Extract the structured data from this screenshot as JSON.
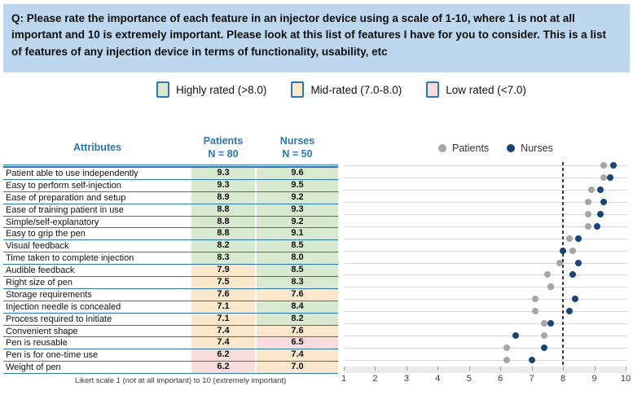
{
  "question": "Q: Please rate the importance of each feature in an injector device using a scale of 1-10, where 1 is not at all important and 10 is extremely important. Please look at this list of features I have for you to consider. This is a list of features of any injection device in terms of functionality, usability, etc",
  "band_legend": [
    {
      "label": "Highly rated (>8.0)",
      "band": "high"
    },
    {
      "label": "Mid-rated (7.0-8.0)",
      "band": "mid"
    },
    {
      "label": "Low rated (<7.0)",
      "band": "low"
    }
  ],
  "table_header": {
    "attributes": "Attributes",
    "patients_line1": "Patients",
    "patients_line2": "N = 80",
    "nurses_line1": "Nurses",
    "nurses_line2": "N = 50"
  },
  "rows": [
    {
      "attribute": "Patient able to use independently",
      "patients": "9.3",
      "nurses": "9.6",
      "patients_band": "high",
      "nurses_band": "high"
    },
    {
      "attribute": "Easy to perform self-injection",
      "patients": "9.3",
      "nurses": "9.5",
      "patients_band": "high",
      "nurses_band": "high"
    },
    {
      "attribute": "Ease of preparation and setup",
      "patients": "8.9",
      "nurses": "9.2",
      "patients_band": "high",
      "nurses_band": "high"
    },
    {
      "attribute": "Ease of training patient in use",
      "patients": "8.8",
      "nurses": "9.3",
      "patients_band": "high",
      "nurses_band": "high"
    },
    {
      "attribute": "Simple/self-explanatory",
      "patients": "8.8",
      "nurses": "9.2",
      "patients_band": "high",
      "nurses_band": "high"
    },
    {
      "attribute": "Easy to grip the pen",
      "patients": "8.8",
      "nurses": "9.1",
      "patients_band": "high",
      "nurses_band": "high"
    },
    {
      "attribute": "Visual feedback",
      "patients": "8.2",
      "nurses": "8.5",
      "patients_band": "high",
      "nurses_band": "high"
    },
    {
      "attribute": "Time taken to complete injection",
      "patients": "8.3",
      "nurses": "8.0",
      "patients_band": "high",
      "nurses_band": "high"
    },
    {
      "attribute": "Audible feedback",
      "patients": "7.9",
      "nurses": "8.5",
      "patients_band": "mid",
      "nurses_band": "high"
    },
    {
      "attribute": "Right size of pen",
      "patients": "7.5",
      "nurses": "8.3",
      "patients_band": "mid",
      "nurses_band": "high"
    },
    {
      "attribute": "Storage requirements",
      "patients": "7.6",
      "nurses": "7.6",
      "patients_band": "mid",
      "nurses_band": "mid"
    },
    {
      "attribute": "Injection needle is concealed",
      "patients": "7.1",
      "nurses": "8.4",
      "patients_band": "mid",
      "nurses_band": "high"
    },
    {
      "attribute": "Process required to initiate",
      "patients": "7.1",
      "nurses": "8.2",
      "patients_band": "mid",
      "nurses_band": "high"
    },
    {
      "attribute": "Convenient shape",
      "patients": "7.4",
      "nurses": "7.6",
      "patients_band": "mid",
      "nurses_band": "mid"
    },
    {
      "attribute": "Pen is reusable",
      "patients": "7.4",
      "nurses": "6.5",
      "patients_band": "mid",
      "nurses_band": "low"
    },
    {
      "attribute": "Pen is for one-time use",
      "patients": "6.2",
      "nurses": "7.4",
      "patients_band": "low",
      "nurses_band": "mid"
    },
    {
      "attribute": "Weight of pen",
      "patients": "6.2",
      "nurses": "7.0",
      "patients_band": "low",
      "nurses_band": "mid"
    }
  ],
  "chart_data": {
    "type": "scatter",
    "title": "",
    "categories": [
      "Patient able to use independently",
      "Easy to perform self-injection",
      "Ease of preparation and setup",
      "Ease of training patient in use",
      "Simple/self-explanatory",
      "Easy to grip the pen",
      "Visual feedback",
      "Time taken to complete injection",
      "Audible feedback",
      "Right size of pen",
      "Storage requirements",
      "Injection needle is concealed",
      "Process required to initiate",
      "Convenient shape",
      "Pen is reusable",
      "Pen is for one-time use",
      "Weight of pen"
    ],
    "series": [
      {
        "name": "Patients",
        "color": "#A6A6A6",
        "values": [
          9.3,
          9.3,
          8.9,
          8.8,
          8.8,
          8.8,
          8.2,
          8.3,
          7.9,
          7.5,
          7.6,
          7.1,
          7.1,
          7.4,
          7.4,
          6.2,
          6.2
        ]
      },
      {
        "name": "Nurses",
        "color": "#1A4379",
        "values": [
          9.6,
          9.5,
          9.2,
          9.3,
          9.2,
          9.1,
          8.5,
          8.0,
          8.5,
          8.3,
          7.6,
          8.4,
          8.2,
          7.6,
          6.5,
          7.4,
          7.0
        ]
      }
    ],
    "xlim": [
      1,
      10
    ],
    "x_ticks": [
      1,
      2,
      3,
      4,
      5,
      6,
      7,
      8,
      9,
      10
    ],
    "reference_line_x": 8,
    "grid": "horizontal",
    "legend_position": "top"
  },
  "x_axis_label_note": "Likert scale 1 (not at all important) to 10 (extremely important)",
  "colors": {
    "header_bg": "#BDD7EE",
    "border_blue": "#2E75B6",
    "header_text": "#2E75B6",
    "high": "#D7E9CF",
    "mid": "#FBE8CC",
    "low": "#F8DDDC",
    "patients_dot": "#A6A6A6",
    "nurses_dot": "#1A4379",
    "grid": "#D9D9D9",
    "ref_line": "#3A3A3A"
  }
}
